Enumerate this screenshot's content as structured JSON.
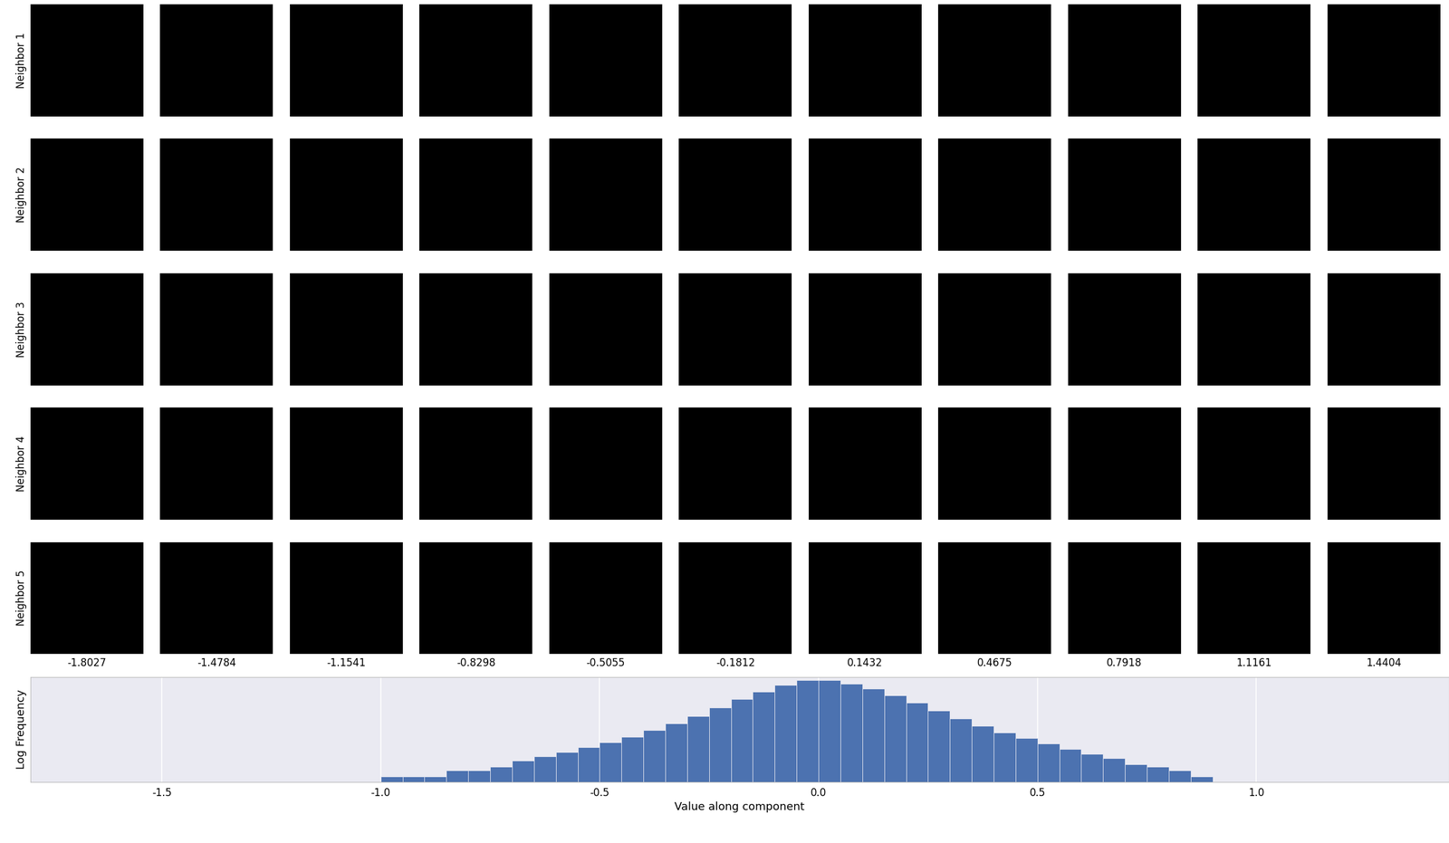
{
  "neighbor_grid": {
    "row_labels": [
      "Neighbor 1",
      "Neighbor 2",
      "Neighbor 3",
      "Neighbor 4",
      "Neighbor 5"
    ],
    "column_values": [
      -1.8027,
      -1.4784,
      -1.1541,
      -0.8298,
      -0.5055,
      -0.1812,
      0.1432,
      0.4675,
      0.7918,
      1.1161,
      1.4404
    ]
  },
  "chart_data": {
    "type": "histogram",
    "xlabel": "Value along component",
    "ylabel": "Log Frequency",
    "bins": [
      -1.0,
      -0.95,
      -0.9,
      -0.85,
      -0.8,
      -0.75,
      -0.7,
      -0.65,
      -0.6,
      -0.55,
      -0.5,
      -0.45,
      -0.4,
      -0.35,
      -0.3,
      -0.25,
      -0.2,
      -0.15,
      -0.1,
      -0.05,
      0.0,
      0.05,
      0.1,
      0.15,
      0.2,
      0.25,
      0.3,
      0.35,
      0.4,
      0.45,
      0.5,
      0.55,
      0.6,
      0.65,
      0.7,
      0.75,
      0.8,
      0.85,
      0.9
    ],
    "counts": [
      1,
      1,
      1,
      2,
      2,
      3,
      6,
      10,
      16,
      29,
      51,
      100,
      215,
      464,
      1100,
      2870,
      7500,
      17800,
      38300,
      68100,
      68100,
      46400,
      26100,
      12100,
      5100,
      1960,
      826,
      348,
      162,
      83,
      46,
      24,
      13,
      8,
      4,
      3,
      2,
      1
    ],
    "color": "#4c72b0",
    "log": "y",
    "grid": true,
    "tick_labels": "x",
    "xlim": [
      -1.8,
      1.44
    ],
    "xticks": [
      -1.5,
      -1.0,
      -0.5,
      0.0,
      0.5,
      1.0
    ],
    "ylim": [
      0.5,
      100000
    ]
  }
}
